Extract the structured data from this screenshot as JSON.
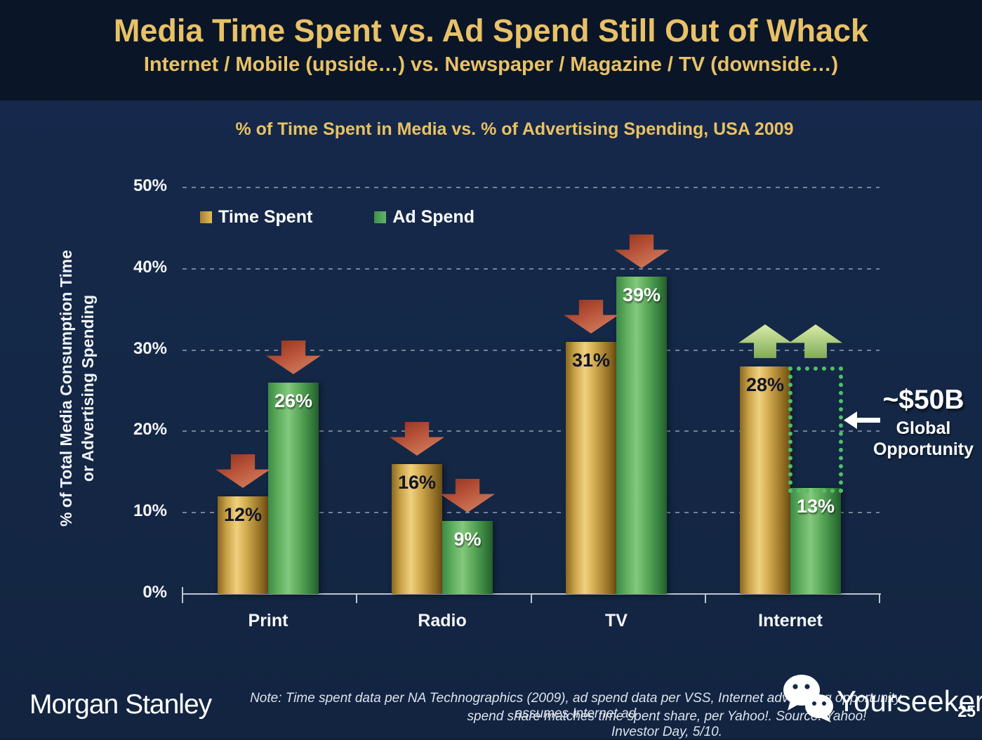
{
  "slide": {
    "title": "Media Time Spent vs. Ad Spend Still Out of Whack",
    "subtitle": "Internet / Mobile (upside…) vs. Newspaper / Magazine / TV (downside…)"
  },
  "chart_data": {
    "type": "bar",
    "title": "% of Time Spent in Media vs. % of Advertising Spending, USA 2009",
    "categories": [
      "Print",
      "Radio",
      "TV",
      "Internet"
    ],
    "series": [
      {
        "name": "Time Spent",
        "values": [
          12,
          16,
          31,
          28
        ],
        "labels": [
          "12%",
          "16%",
          "31%",
          "28%"
        ],
        "color": "#D9A93F"
      },
      {
        "name": "Ad Spend",
        "values": [
          26,
          9,
          39,
          13
        ],
        "labels": [
          "26%",
          "9%",
          "39%",
          "13%"
        ],
        "color": "#4FAC5F"
      }
    ],
    "ylabel": "% of Total Media Consumption Time\nor Advertising Spending",
    "yticks": [
      "50%",
      "40%",
      "30%",
      "20%",
      "10%",
      "0%"
    ],
    "ytick_values": [
      50,
      40,
      30,
      20,
      10,
      0
    ],
    "ylim": [
      0,
      50
    ],
    "grid": "dotted horizontal gridlines every 10%",
    "legend_position": "top-left inside plot",
    "down_arrows": [
      {
        "category": "Print",
        "series": "Time Spent"
      },
      {
        "category": "Print",
        "series": "Ad Spend"
      },
      {
        "category": "Radio",
        "series": "Time Spent"
      },
      {
        "category": "Radio",
        "series": "Ad Spend"
      },
      {
        "category": "TV",
        "series": "Time Spent"
      },
      {
        "category": "TV",
        "series": "Ad Spend"
      }
    ],
    "up_arrows": [
      {
        "category": "Internet",
        "series": "Time Spent"
      },
      {
        "category": "Internet",
        "series": "Ad Spend"
      }
    ],
    "opportunity": {
      "value": "~$50B",
      "caption_line1": "Global",
      "caption_line2": "Opportunity",
      "gap_description": "Dashed box from Internet Ad Spend 13% up to Time Spent 28%"
    }
  },
  "footer": {
    "logo": "Morgan Stanley",
    "note_line1": "Note: Time spent data per NA Technographics (2009), ad spend data per VSS, Internet advertising opportunity assumes Internet ad",
    "note_line2": "spend share matches time spent share, per Yahoo!. Source: Yahoo! Investor Day, 5/10.",
    "watermark": "Yourseeker",
    "page_number": "25"
  },
  "colors": {
    "header_background": "#0A1627",
    "body_background": "#15294C",
    "title_gold": "#E8C168",
    "bar_gold": "#D9A93F",
    "bar_green": "#4FAC5F",
    "arrow_down_red": "#BC5038",
    "arrow_up_green": "#AECE7F",
    "dashed_box_green": "#53BE69",
    "text_white": "#FFFFFF"
  }
}
